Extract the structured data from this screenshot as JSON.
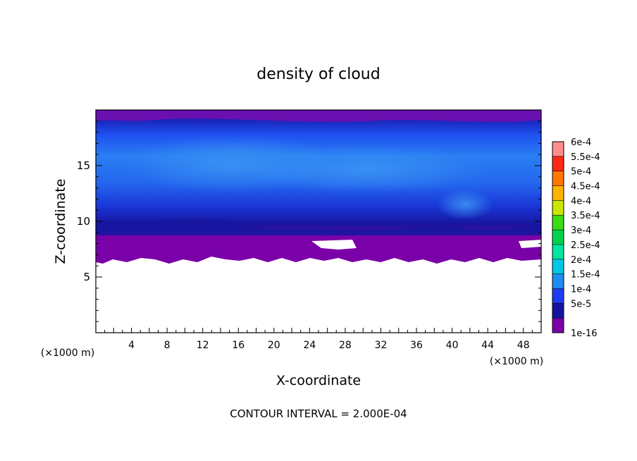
{
  "chart_data": {
    "type": "heatmap",
    "title": "density of cloud",
    "xlabel": "X-coordinate",
    "ylabel": "Z-coordinate",
    "x_unit_left": "(×1000 m)",
    "x_unit_right": "(×1000 m)",
    "footer": "CONTOUR INTERVAL = 2.000E-04",
    "xlim": [
      0,
      50
    ],
    "ylim": [
      0,
      20
    ],
    "x_ticks": [
      4,
      8,
      12,
      16,
      20,
      24,
      28,
      32,
      36,
      40,
      44,
      48
    ],
    "y_ticks": [
      5,
      10,
      15
    ],
    "grid": false,
    "legend_position": "right",
    "colorbar": [
      {
        "label": "1e-16",
        "color": "#7a00a8"
      },
      {
        "label": "5e-5",
        "color": "#1414a0"
      },
      {
        "label": "1e-4",
        "color": "#1e3cf0"
      },
      {
        "label": "1.5e-4",
        "color": "#1e8cf0"
      },
      {
        "label": "2e-4",
        "color": "#00c8e6"
      },
      {
        "label": "2.5e-4",
        "color": "#00e6a0"
      },
      {
        "label": "3e-4",
        "color": "#00d250"
      },
      {
        "label": "3.5e-4",
        "color": "#3cdc14"
      },
      {
        "label": "4e-4",
        "color": "#c8e600"
      },
      {
        "label": "4.5e-4",
        "color": "#ffb400"
      },
      {
        "label": "5e-4",
        "color": "#ff7800"
      },
      {
        "label": "5.5e-4",
        "color": "#ff2814"
      },
      {
        "label": "6e-4",
        "color": "#ff8c8c"
      }
    ],
    "field_description_levels": {
      "cloud_base_km": 6.7,
      "cloud_top_km": 20,
      "peak_level_label": "1.5e-4"
    }
  }
}
